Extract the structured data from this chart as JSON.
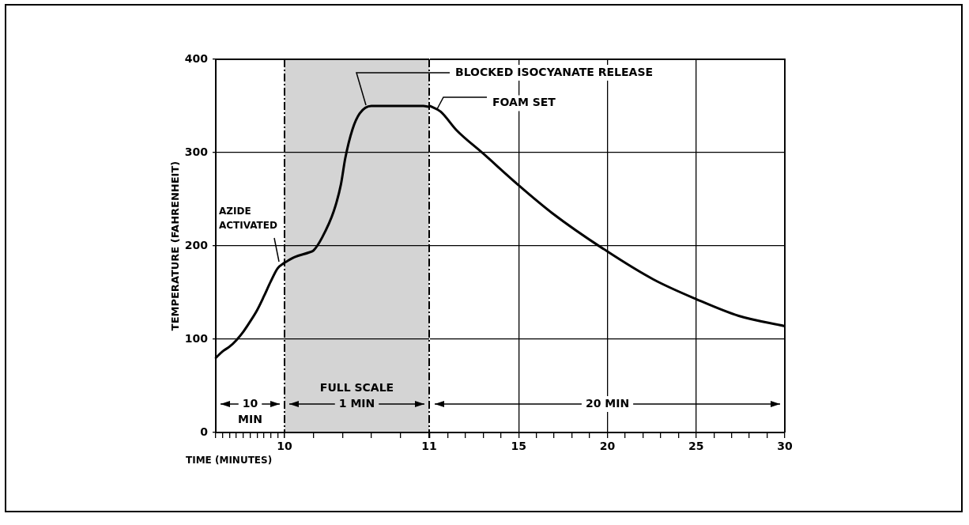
{
  "chart_data": [
    {
      "type": "line",
      "ylabel": "TEMPERATURE (FAHRENHEIT)",
      "xlabel": "TIME (MINUTES)",
      "categories": [
        null,
        null,
        null,
        null,
        null,
        null,
        null,
        null,
        null,
        null,
        null
      ],
      "values": [
        80,
        87,
        92,
        99,
        108,
        119,
        131,
        146,
        162,
        176,
        182
      ],
      "color": "#000000",
      "ylim": [
        0,
        400
      ],
      "yticks": [
        0,
        100,
        200,
        300,
        400
      ],
      "tick_labels": "y",
      "grid": "y",
      "marker": "none",
      "line_style": "solid",
      "annotations": [
        "AZIDE ACTIVATED",
        "10 MIN"
      ]
    },
    {
      "type": "line",
      "x": [
        10,
        10.07,
        10.17,
        10.2,
        10.26,
        10.34,
        10.39,
        10.42,
        10.47,
        10.52,
        10.6,
        10.96,
        11
      ],
      "values": [
        182,
        188,
        193,
        195,
        209,
        237,
        266,
        294,
        325,
        342,
        350,
        350,
        349
      ],
      "color": "#000000",
      "xlim": [
        10,
        11
      ],
      "xticks": [
        10,
        {
          "value": 10.2,
          "label": null
        },
        {
          "value": 10.4,
          "label": null
        },
        {
          "value": 10.6,
          "label": null
        },
        {
          "value": 10.8,
          "label": null
        },
        11
      ],
      "ylim": [
        0,
        400
      ],
      "yticks": [
        0,
        100,
        200,
        300,
        400
      ],
      "tick_labels": "x",
      "grid": "y",
      "marker": "none",
      "line_style": "solid",
      "bands": [
        {
          "axis": "x",
          "from": 10,
          "to": 11,
          "color": "#d4d4d4"
        }
      ],
      "ref_lines": [
        {
          "axis": "x",
          "value": 10,
          "line_style": "dashed"
        },
        {
          "axis": "x",
          "value": 11,
          "line_style": "dashed"
        }
      ],
      "annotations": [
        "FULL SCALE 1 MIN"
      ]
    },
    {
      "type": "line",
      "x": [
        10,
        10.6,
        11.5,
        13,
        15,
        16.9,
        20,
        22.6,
        25,
        27.4,
        30
      ],
      "values": [
        350,
        344,
        324,
        299,
        265,
        235,
        194,
        164,
        143,
        125,
        114
      ],
      "color": "#000000",
      "xlim": [
        10,
        30
      ],
      "xticks": [
        {
          "value": 10,
          "label": null
        },
        {
          "value": 11,
          "label": null
        },
        {
          "value": 12,
          "label": null
        },
        {
          "value": 13,
          "label": null
        },
        {
          "value": 14,
          "label": null
        },
        15,
        {
          "value": 16,
          "label": null
        },
        {
          "value": 17,
          "label": null
        },
        {
          "value": 18,
          "label": null
        },
        {
          "value": 19,
          "label": null
        },
        20,
        {
          "value": 21,
          "label": null
        },
        {
          "value": 22,
          "label": null
        },
        {
          "value": 23,
          "label": null
        },
        {
          "value": 24,
          "label": null
        },
        25,
        {
          "value": 26,
          "label": null
        },
        {
          "value": 27,
          "label": null
        },
        {
          "value": 28,
          "label": null
        },
        {
          "value": 29,
          "label": null
        },
        30
      ],
      "ylim": [
        0,
        400
      ],
      "yticks": [
        0,
        100,
        200,
        300,
        400
      ],
      "tick_labels": "x",
      "grid": true,
      "marker": "none",
      "line_style": "solid",
      "annotations": [
        "BLOCKED ISOCYANATE RELEASE",
        {
          "text": "FOAM SET",
          "x": 10.4,
          "y": 347
        },
        "20 MIN"
      ]
    }
  ]
}
